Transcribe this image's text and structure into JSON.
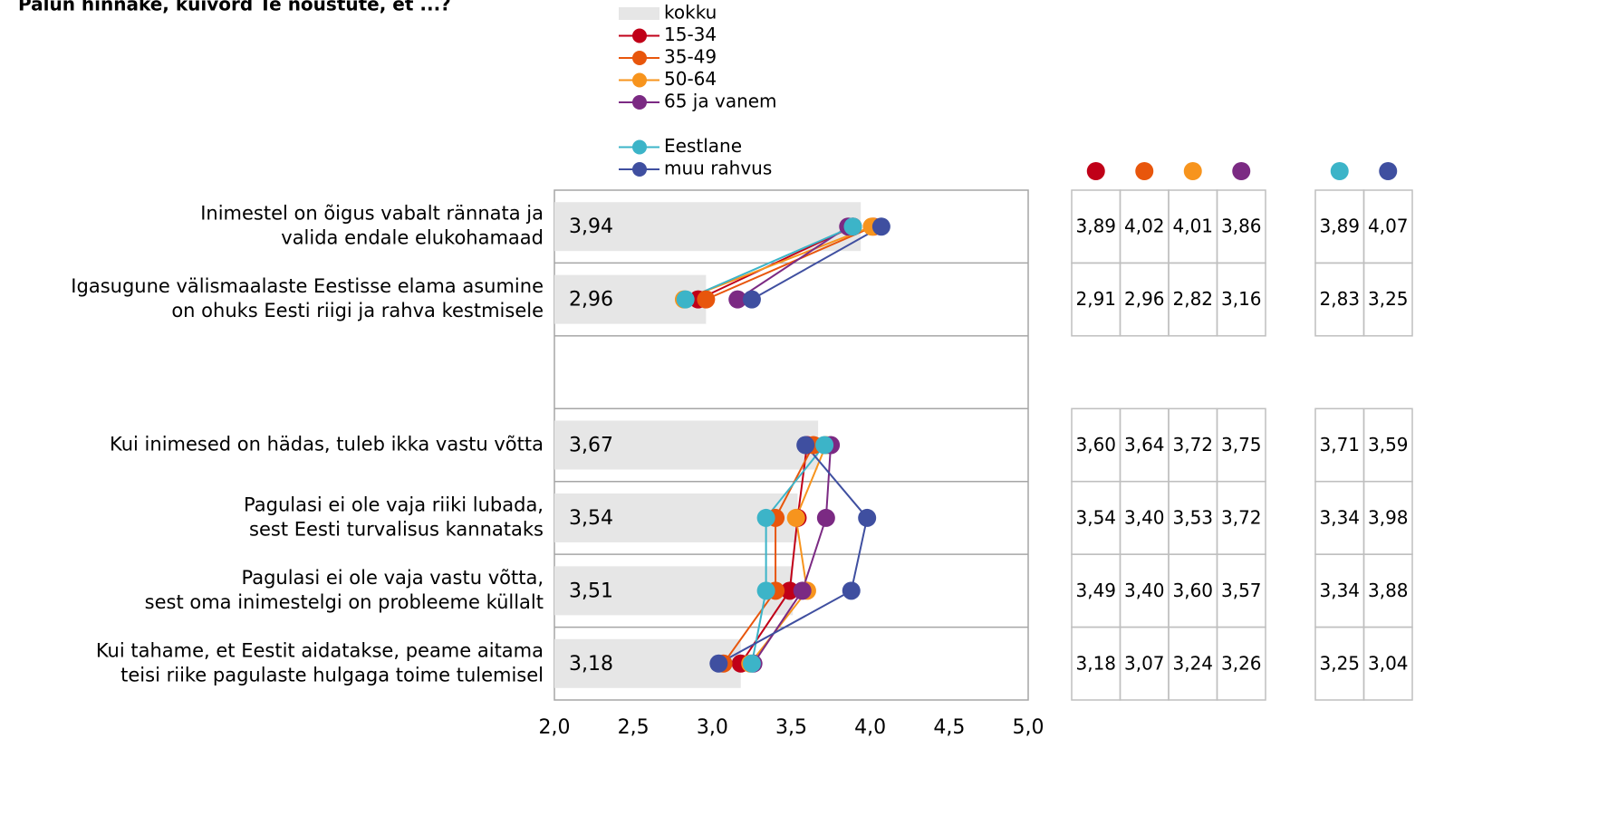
{
  "chart_data": {
    "type": "dot",
    "title": "Palun hinnake, kuivõrd Te nõustute, et ...?",
    "categories": [
      "Inimestel on õigus vabalt rännata ja\nvalida endale elukohamaad",
      "Igasugune välismaalaste Eestisse elama asumine\non ohuks Eesti riigi ja rahva kestmisele",
      null,
      "Kui inimesed on hädas, tuleb ikka vastu võtta",
      "Pagulasi ei ole vaja riiki lubada,\nsest Eesti turvalisus kannataks",
      "Pagulasi ei ole vaja vastu võtta,\nsest oma inimestelgi on probleeme küllalt",
      "Kui tahame, et Eestit aidatakse, peame aitama\nteisi riike pagulaste hulgaga toime tulemisel"
    ],
    "series": [
      {
        "name": "kokku",
        "style": "bar",
        "color": "#e6e6e6",
        "values": [
          3.94,
          2.96,
          null,
          3.67,
          3.54,
          3.51,
          3.18
        ],
        "value_labels": [
          "3,94",
          "2,96",
          null,
          "3,67",
          "3,54",
          "3,51",
          "3,18"
        ]
      },
      {
        "name": "15-34",
        "style": "line",
        "color": "#c00018",
        "values": [
          3.89,
          2.91,
          null,
          3.6,
          3.54,
          3.49,
          3.18
        ],
        "value_labels": [
          "3,89",
          "2,91",
          null,
          "3,60",
          "3,54",
          "3,49",
          "3,18"
        ],
        "value_label_colors": [
          "#000",
          "#000",
          null,
          "#000",
          "#000",
          "#000",
          "#000"
        ]
      },
      {
        "name": "35-49",
        "style": "line",
        "color": "#e8560c",
        "values": [
          4.02,
          2.96,
          null,
          3.64,
          3.4,
          3.4,
          3.07
        ],
        "value_labels": [
          "4,02",
          "2,96",
          null,
          "3,64",
          "3,40",
          "3,40",
          "3,07"
        ],
        "value_label_colors": [
          "#000",
          "#000",
          null,
          "#000",
          "#e60000",
          "#e60000",
          "#e60000"
        ]
      },
      {
        "name": "50-64",
        "style": "line",
        "color": "#f7941d",
        "values": [
          4.01,
          2.82,
          null,
          3.72,
          3.53,
          3.6,
          3.24
        ],
        "value_labels": [
          "4,01",
          "2,82",
          null,
          "3,72",
          "3,53",
          "3,60",
          "3,24"
        ],
        "value_label_colors": [
          "#000",
          "#000",
          null,
          "#000",
          "#000",
          "#000",
          "#000"
        ]
      },
      {
        "name": "65 ja vanem",
        "style": "line",
        "color": "#7b2a83",
        "values": [
          3.86,
          3.16,
          null,
          3.75,
          3.72,
          3.57,
          3.26
        ],
        "value_labels": [
          "3,86",
          "3,16",
          null,
          "3,75",
          "3,72",
          "3,57",
          "3,26"
        ],
        "value_label_colors": [
          "#000",
          "#000",
          null,
          "#1aa04a",
          "#000",
          "#000",
          "#000"
        ]
      },
      {
        "name": "Eestlane",
        "style": "line",
        "color": "#3cb4c8",
        "values": [
          3.89,
          2.83,
          null,
          3.71,
          3.34,
          3.34,
          3.25
        ],
        "value_labels": [
          "3,89",
          "2,83",
          null,
          "3,71",
          "3,34",
          "3,34",
          "3,25"
        ],
        "value_label_colors": [
          "#000",
          "#e60000",
          null,
          "#000",
          "#e60000",
          "#e60000",
          "#000"
        ]
      },
      {
        "name": "muu rahvus",
        "style": "line",
        "color": "#3f4fa0",
        "values": [
          4.07,
          3.25,
          null,
          3.59,
          3.98,
          3.88,
          3.04
        ],
        "value_labels": [
          "4,07",
          "3,25",
          null,
          "3,59",
          "3,98",
          "3,88",
          "3,04"
        ],
        "value_label_colors": [
          "#1aa04a",
          "#1aa04a",
          null,
          "#e60000",
          "#1aa04a",
          "#1aa04a",
          "#e60000"
        ]
      }
    ],
    "xlim": [
      2.0,
      5.0
    ],
    "xticks": [
      {
        "value": 2.0,
        "label": "2,0"
      },
      {
        "value": 2.5,
        "label": "2,5"
      },
      {
        "value": 3.0,
        "label": "3,0"
      },
      {
        "value": 3.5,
        "label": "3,5"
      },
      {
        "value": 4.0,
        "label": "4,0"
      },
      {
        "value": 4.5,
        "label": "4,5"
      },
      {
        "value": 5.0,
        "label": "5,0"
      }
    ]
  }
}
